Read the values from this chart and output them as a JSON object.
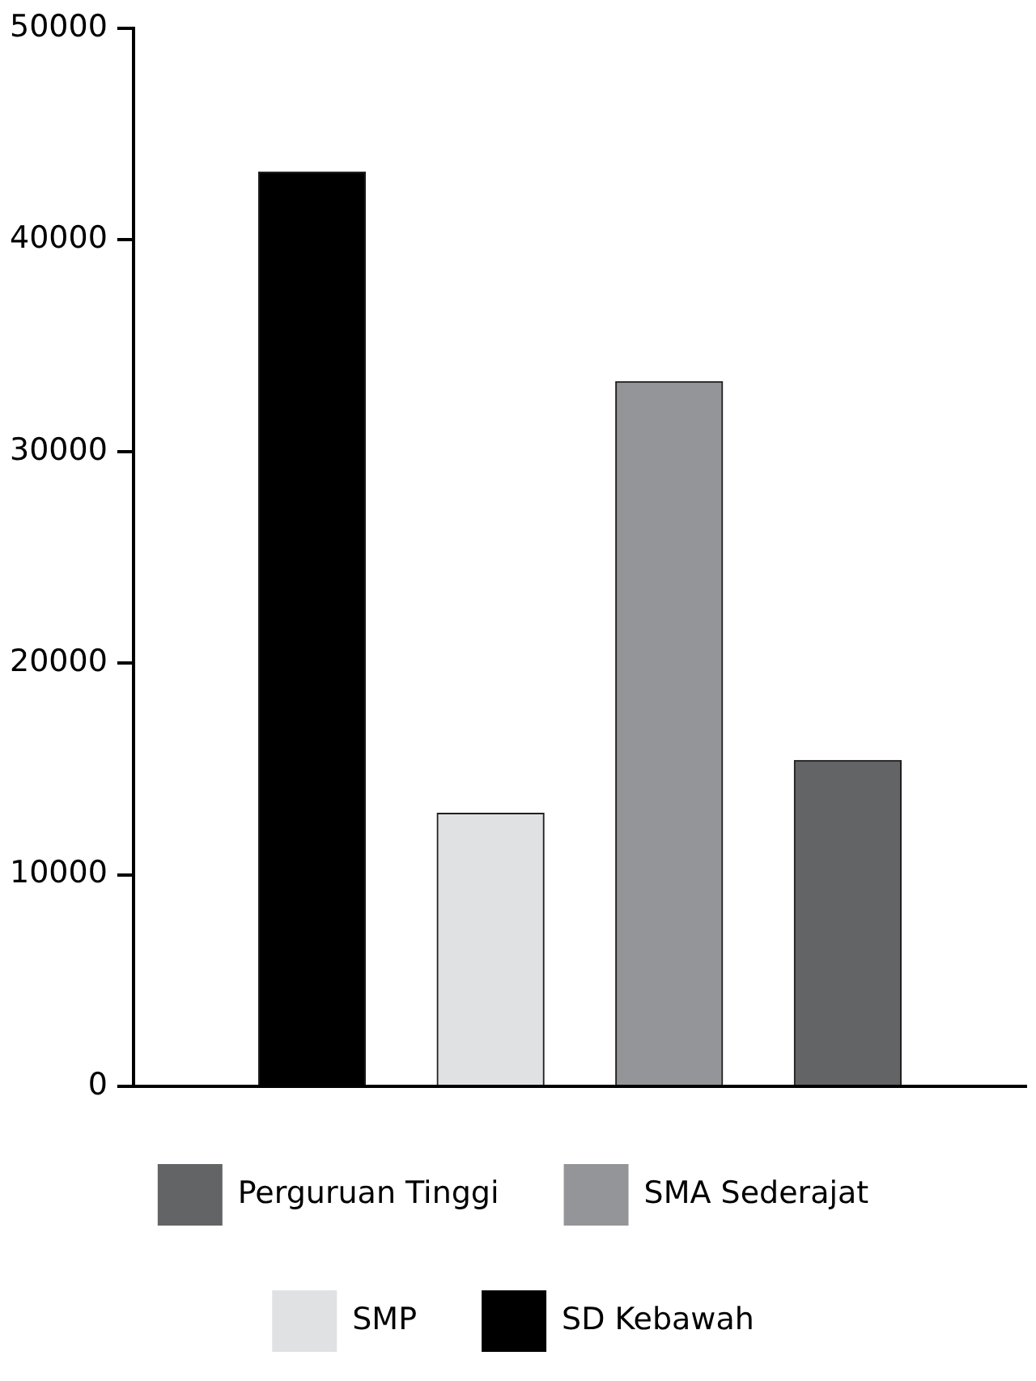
{
  "chart_data": {
    "type": "bar",
    "categories": [
      null,
      null,
      null,
      null
    ],
    "series": [
      {
        "name": "SD Kebawah",
        "color": "#000000",
        "values": [
          43200,
          null,
          null,
          null
        ]
      },
      {
        "name": "SMP",
        "color": "#e0e1e3",
        "values": [
          null,
          12900,
          null,
          null
        ]
      },
      {
        "name": "SMA Sederajat",
        "color": "#939598",
        "values": [
          null,
          null,
          33300,
          null
        ]
      },
      {
        "name": "Perguruan Tinggi",
        "color": "#636466",
        "values": [
          null,
          null,
          null,
          15400
        ]
      }
    ],
    "ylim": [
      0,
      50000
    ],
    "yticks": [
      0,
      10000,
      20000,
      30000,
      40000,
      50000
    ],
    "legend": "bottom"
  }
}
